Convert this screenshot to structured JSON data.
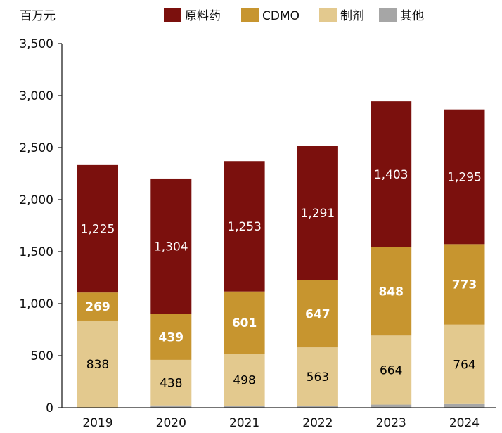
{
  "chart_data": {
    "type": "bar",
    "stacked": true,
    "unit_label": "百万元",
    "categories": [
      "2019",
      "2020",
      "2021",
      "2022",
      "2023",
      "2024"
    ],
    "series": [
      {
        "name": "其他",
        "values": [
          0,
          22,
          18,
          17,
          30,
          35
        ],
        "color": "#a6a6a6",
        "label_color": "#000000",
        "label_bold": false,
        "show_labels": false
      },
      {
        "name": "制剂",
        "values": [
          838,
          438,
          498,
          563,
          664,
          764
        ],
        "color": "#e3c98e",
        "label_color": "#000000",
        "label_bold": false,
        "show_labels": true
      },
      {
        "name": "CDMO",
        "values": [
          269,
          439,
          601,
          647,
          848,
          773
        ],
        "color": "#c7952f",
        "label_color": "#ffffff",
        "label_bold": true,
        "show_labels": true
      },
      {
        "name": "原料药",
        "values": [
          1225,
          1304,
          1253,
          1291,
          1403,
          1295
        ],
        "color": "#7b100d",
        "label_color": "#ffffff",
        "label_bold": false,
        "show_labels": true
      }
    ],
    "legend_order": [
      "原料药",
      "CDMO",
      "制剂",
      "其他"
    ],
    "legend_position": "top",
    "ylim": [
      0,
      3500
    ],
    "yticks": [
      0,
      500,
      1000,
      1500,
      2000,
      2500,
      3000,
      3500
    ],
    "ytick_labels": [
      "0",
      "500",
      "1,000",
      "1,500",
      "2,000",
      "2,500",
      "3,000",
      "3,500"
    ],
    "grid": false
  }
}
